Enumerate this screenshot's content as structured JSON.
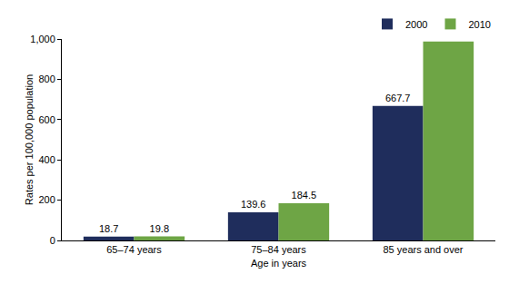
{
  "chart_data": {
    "type": "bar",
    "categories": [
      "65–74 years",
      "75–84 years",
      "85 years and over"
    ],
    "series": [
      {
        "name": "2000",
        "color": "#1f2d5c",
        "values": [
          18.7,
          139.6,
          667.7
        ]
      },
      {
        "name": "2010",
        "color": "#6ea545",
        "values": [
          19.8,
          184.5,
          987.1
        ]
      }
    ],
    "x_label": "Age in years",
    "y_label": "Rates per 100,000 population",
    "ylim": [
      0,
      1000
    ],
    "yticks": [
      0,
      200,
      400,
      600,
      800,
      {
        "value": 1000,
        "label": "1,000"
      }
    ],
    "grid": false,
    "legend": "top-right",
    "data_labels": true
  }
}
